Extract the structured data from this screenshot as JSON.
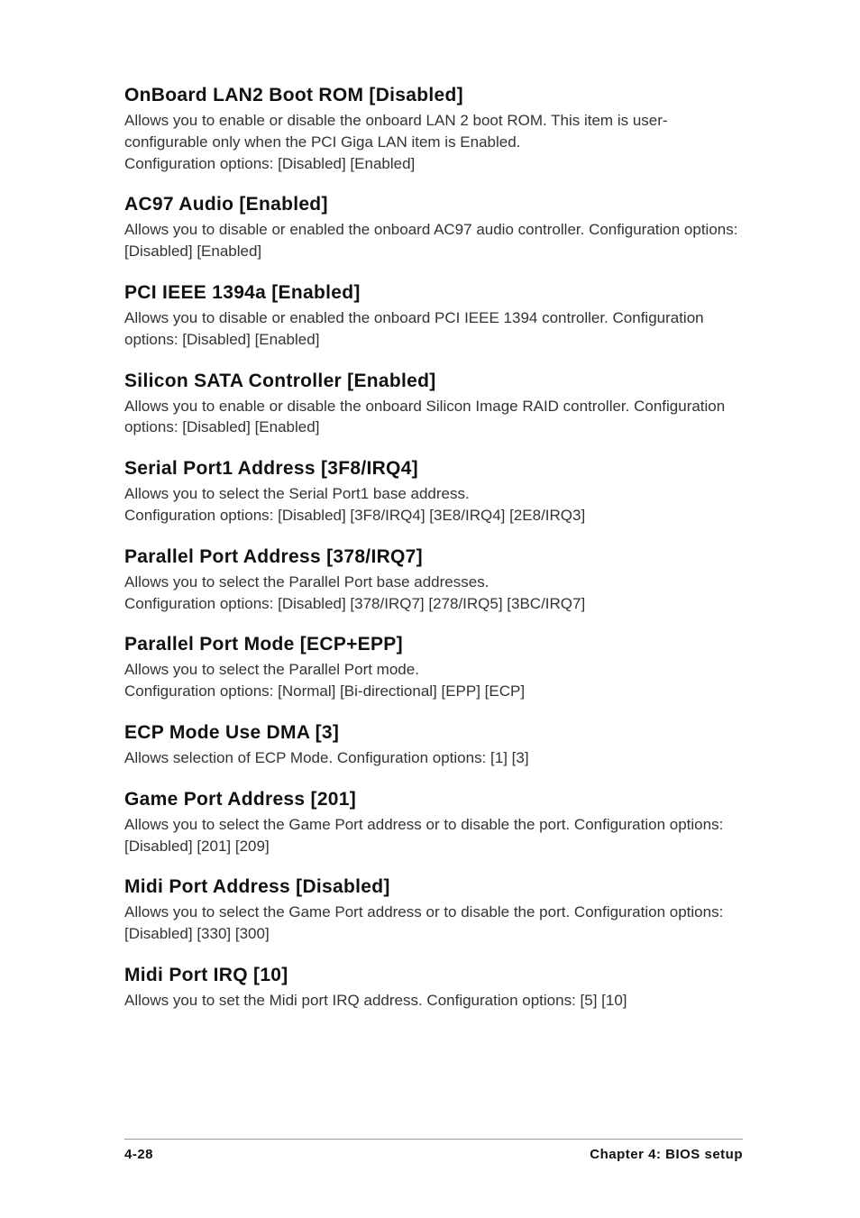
{
  "sections": [
    {
      "heading": "OnBoard LAN2 Boot ROM [Disabled]",
      "body": "Allows you to enable or disable the onboard LAN 2 boot ROM. This item is user-configurable only when the PCI Giga LAN item is Enabled.\nConfiguration options: [Disabled] [Enabled]"
    },
    {
      "heading": "AC97 Audio [Enabled]",
      "body": "Allows you to disable or enabled  the onboard AC97 audio controller. Configuration options: [Disabled] [Enabled]"
    },
    {
      "heading": "PCI IEEE 1394a [Enabled]",
      "body": "Allows you to disable or enabled  the onboard PCI IEEE 1394 controller. Configuration options: [Disabled] [Enabled]"
    },
    {
      "heading": "Silicon SATA Controller [Enabled]",
      "body": "Allows you to enable or disable the onboard Silicon Image RAID controller. Configuration options: [Disabled] [Enabled]"
    },
    {
      "heading": "Serial Port1 Address [3F8/IRQ4]",
      "body": "Allows you to select the Serial Port1 base address.\nConfiguration options: [Disabled] [3F8/IRQ4] [3E8/IRQ4] [2E8/IRQ3]"
    },
    {
      "heading": "Parallel Port Address [378/IRQ7]",
      "body": "Allows you to select the Parallel Port base addresses.\nConfiguration options: [Disabled] [378/IRQ7] [278/IRQ5] [3BC/IRQ7]"
    },
    {
      "heading": "Parallel Port Mode [ECP+EPP]",
      "body": "Allows you to select the Parallel Port  mode.\nConfiguration options: [Normal] [Bi-directional] [EPP] [ECP]"
    },
    {
      "heading": "ECP Mode Use DMA [3]",
      "body": "Allows selection of ECP Mode. Configuration options: [1] [3]"
    },
    {
      "heading": "Game Port Address [201]",
      "body": "Allows you to select the Game Port address or to disable the port. Configuration options: [Disabled] [201] [209]"
    },
    {
      "heading": "Midi Port Address [Disabled]",
      "body": "Allows you to select the Game Port address or to disable the port. Configuration options: [Disabled] [330] [300]"
    },
    {
      "heading": "Midi Port IRQ [10]",
      "body": "Allows you to set the Midi port IRQ address. Configuration options: [5] [10]"
    }
  ],
  "footer": {
    "left": "4-28",
    "right": "Chapter 4: BIOS setup"
  }
}
